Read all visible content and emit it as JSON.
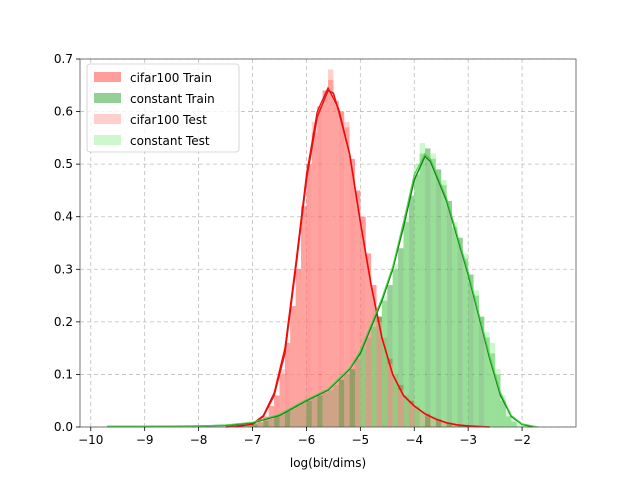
{
  "chart_data": {
    "type": "area",
    "title": "",
    "xlabel": "log(bit/dims)",
    "ylabel": "",
    "xlim": [
      -10.2,
      -1.0
    ],
    "ylim": [
      0,
      0.7
    ],
    "xticks": [
      -10,
      -9,
      -8,
      -7,
      -6,
      -5,
      -4,
      -3,
      -2
    ],
    "xtick_labels": [
      "−10",
      "−9",
      "−8",
      "−7",
      "−6",
      "−5",
      "−4",
      "−3",
      "−2"
    ],
    "yticks": [
      0.0,
      0.1,
      0.2,
      0.3,
      0.4,
      0.5,
      0.6,
      0.7
    ],
    "ytick_labels": [
      "0.0",
      "0.1",
      "0.2",
      "0.3",
      "0.4",
      "0.5",
      "0.6",
      "0.7"
    ],
    "grid": true,
    "legend_position": "top-left",
    "bin_width": 0.1,
    "series": [
      {
        "name": "cifar100 Train",
        "kind": "histogram",
        "color": "#ff4d4d",
        "opacity": 0.55,
        "bins": [
          {
            "x": -7.0,
            "y": 0.005
          },
          {
            "x": -6.9,
            "y": 0.01
          },
          {
            "x": -6.8,
            "y": 0.02
          },
          {
            "x": -6.7,
            "y": 0.04
          },
          {
            "x": -6.6,
            "y": 0.06
          },
          {
            "x": -6.5,
            "y": 0.1
          },
          {
            "x": -6.4,
            "y": 0.16
          },
          {
            "x": -6.3,
            "y": 0.23
          },
          {
            "x": -6.2,
            "y": 0.3
          },
          {
            "x": -6.1,
            "y": 0.42
          },
          {
            "x": -6.0,
            "y": 0.5
          },
          {
            "x": -5.9,
            "y": 0.56
          },
          {
            "x": -5.8,
            "y": 0.61
          },
          {
            "x": -5.7,
            "y": 0.64
          },
          {
            "x": -5.6,
            "y": 0.66
          },
          {
            "x": -5.5,
            "y": 0.62
          },
          {
            "x": -5.4,
            "y": 0.6
          },
          {
            "x": -5.3,
            "y": 0.57
          },
          {
            "x": -5.2,
            "y": 0.51
          },
          {
            "x": -5.1,
            "y": 0.45
          },
          {
            "x": -5.0,
            "y": 0.4
          },
          {
            "x": -4.9,
            "y": 0.33
          },
          {
            "x": -4.8,
            "y": 0.27
          },
          {
            "x": -4.7,
            "y": 0.21
          },
          {
            "x": -4.6,
            "y": 0.17
          },
          {
            "x": -4.5,
            "y": 0.13
          },
          {
            "x": -4.4,
            "y": 0.1
          },
          {
            "x": -4.3,
            "y": 0.08
          },
          {
            "x": -4.2,
            "y": 0.06
          },
          {
            "x": -4.1,
            "y": 0.05
          },
          {
            "x": -4.0,
            "y": 0.04
          },
          {
            "x": -3.9,
            "y": 0.03
          },
          {
            "x": -3.8,
            "y": 0.025
          },
          {
            "x": -3.7,
            "y": 0.02
          },
          {
            "x": -3.6,
            "y": 0.015
          },
          {
            "x": -3.5,
            "y": 0.01
          },
          {
            "x": -3.4,
            "y": 0.008
          },
          {
            "x": -3.3,
            "y": 0.006
          },
          {
            "x": -3.2,
            "y": 0.004
          },
          {
            "x": -3.1,
            "y": 0.003
          },
          {
            "x": -3.0,
            "y": 0.002
          }
        ]
      },
      {
        "name": "constant Train",
        "kind": "histogram",
        "color": "#2ca02c",
        "opacity": 0.5,
        "bins": [
          {
            "x": -7.3,
            "y": 0.003
          },
          {
            "x": -7.2,
            "y": 0.004
          },
          {
            "x": -7.1,
            "y": 0.006
          },
          {
            "x": -7.0,
            "y": 0.008
          },
          {
            "x": -6.9,
            "y": 0.01
          },
          {
            "x": -6.8,
            "y": 0.012
          },
          {
            "x": -6.7,
            "y": 0.015
          },
          {
            "x": -6.6,
            "y": 0.02
          },
          {
            "x": -6.5,
            "y": 0.025
          },
          {
            "x": -6.4,
            "y": 0.03
          },
          {
            "x": -6.3,
            "y": 0.035
          },
          {
            "x": -6.2,
            "y": 0.04
          },
          {
            "x": -6.1,
            "y": 0.045
          },
          {
            "x": -6.0,
            "y": 0.05
          },
          {
            "x": -5.9,
            "y": 0.055
          },
          {
            "x": -5.8,
            "y": 0.06
          },
          {
            "x": -5.7,
            "y": 0.065
          },
          {
            "x": -5.6,
            "y": 0.07
          },
          {
            "x": -5.5,
            "y": 0.08
          },
          {
            "x": -5.4,
            "y": 0.09
          },
          {
            "x": -5.3,
            "y": 0.1
          },
          {
            "x": -5.2,
            "y": 0.11
          },
          {
            "x": -5.1,
            "y": 0.13
          },
          {
            "x": -5.0,
            "y": 0.15
          },
          {
            "x": -4.9,
            "y": 0.17
          },
          {
            "x": -4.8,
            "y": 0.19
          },
          {
            "x": -4.7,
            "y": 0.21
          },
          {
            "x": -4.6,
            "y": 0.24
          },
          {
            "x": -4.5,
            "y": 0.27
          },
          {
            "x": -4.4,
            "y": 0.3
          },
          {
            "x": -4.3,
            "y": 0.34
          },
          {
            "x": -4.2,
            "y": 0.39
          },
          {
            "x": -4.1,
            "y": 0.44
          },
          {
            "x": -4.0,
            "y": 0.48
          },
          {
            "x": -3.9,
            "y": 0.52
          },
          {
            "x": -3.8,
            "y": 0.53
          },
          {
            "x": -3.7,
            "y": 0.51
          },
          {
            "x": -3.6,
            "y": 0.49
          },
          {
            "x": -3.5,
            "y": 0.46
          },
          {
            "x": -3.4,
            "y": 0.43
          },
          {
            "x": -3.3,
            "y": 0.38
          },
          {
            "x": -3.2,
            "y": 0.36
          },
          {
            "x": -3.1,
            "y": 0.32
          },
          {
            "x": -3.0,
            "y": 0.29
          },
          {
            "x": -2.9,
            "y": 0.25
          },
          {
            "x": -2.8,
            "y": 0.21
          },
          {
            "x": -2.7,
            "y": 0.17
          },
          {
            "x": -2.6,
            "y": 0.14
          },
          {
            "x": -2.5,
            "y": 0.1
          },
          {
            "x": -2.4,
            "y": 0.05
          },
          {
            "x": -2.3,
            "y": 0.02
          },
          {
            "x": -2.2,
            "y": 0.01
          }
        ]
      },
      {
        "name": "cifar100 Test",
        "kind": "histogram",
        "color": "#ffa8a0",
        "opacity": 0.55,
        "bins": [
          {
            "x": -6.9,
            "y": 0.01
          },
          {
            "x": -6.7,
            "y": 0.04
          },
          {
            "x": -6.5,
            "y": 0.11
          },
          {
            "x": -6.3,
            "y": 0.22
          },
          {
            "x": -6.2,
            "y": 0.28
          },
          {
            "x": -6.1,
            "y": 0.4
          },
          {
            "x": -5.9,
            "y": 0.58
          },
          {
            "x": -5.7,
            "y": 0.63
          },
          {
            "x": -5.6,
            "y": 0.68
          },
          {
            "x": -5.5,
            "y": 0.6
          },
          {
            "x": -5.3,
            "y": 0.58
          },
          {
            "x": -5.1,
            "y": 0.43
          },
          {
            "x": -4.9,
            "y": 0.32
          },
          {
            "x": -4.7,
            "y": 0.2
          },
          {
            "x": -4.5,
            "y": 0.12
          },
          {
            "x": -4.3,
            "y": 0.07
          },
          {
            "x": -4.1,
            "y": 0.045
          },
          {
            "x": -3.9,
            "y": 0.028
          },
          {
            "x": -3.7,
            "y": 0.018
          },
          {
            "x": -3.5,
            "y": 0.01
          },
          {
            "x": -3.3,
            "y": 0.005
          }
        ]
      },
      {
        "name": "constant Test",
        "kind": "histogram",
        "color": "#9bef9b",
        "opacity": 0.5,
        "bins": [
          {
            "x": -5.0,
            "y": 0.15
          },
          {
            "x": -4.8,
            "y": 0.2
          },
          {
            "x": -4.6,
            "y": 0.25
          },
          {
            "x": -4.4,
            "y": 0.31
          },
          {
            "x": -4.2,
            "y": 0.4
          },
          {
            "x": -4.0,
            "y": 0.5
          },
          {
            "x": -3.9,
            "y": 0.54
          },
          {
            "x": -3.7,
            "y": 0.52
          },
          {
            "x": -3.5,
            "y": 0.47
          },
          {
            "x": -3.3,
            "y": 0.39
          },
          {
            "x": -3.1,
            "y": 0.33
          },
          {
            "x": -2.9,
            "y": 0.26
          },
          {
            "x": -2.7,
            "y": 0.18
          },
          {
            "x": -2.6,
            "y": 0.16
          },
          {
            "x": -2.5,
            "y": 0.11
          },
          {
            "x": -2.4,
            "y": 0.06
          },
          {
            "x": -2.3,
            "y": 0.03
          },
          {
            "x": -2.2,
            "y": 0.015
          },
          {
            "x": -2.1,
            "y": 0.008
          },
          {
            "x": -2.0,
            "y": 0.004
          }
        ]
      }
    ],
    "kde": [
      {
        "series": "cifar100 Train",
        "color": "#d62020",
        "width": 1.6,
        "points": [
          [
            -7.5,
            0.0
          ],
          [
            -7.0,
            0.005
          ],
          [
            -6.8,
            0.02
          ],
          [
            -6.6,
            0.06
          ],
          [
            -6.4,
            0.14
          ],
          [
            -6.2,
            0.3
          ],
          [
            -6.0,
            0.47
          ],
          [
            -5.8,
            0.59
          ],
          [
            -5.6,
            0.64
          ],
          [
            -5.5,
            0.635
          ],
          [
            -5.4,
            0.6
          ],
          [
            -5.2,
            0.52
          ],
          [
            -5.0,
            0.39
          ],
          [
            -4.8,
            0.27
          ],
          [
            -4.6,
            0.17
          ],
          [
            -4.4,
            0.1
          ],
          [
            -4.2,
            0.06
          ],
          [
            -4.0,
            0.04
          ],
          [
            -3.8,
            0.025
          ],
          [
            -3.6,
            0.015
          ],
          [
            -3.4,
            0.008
          ],
          [
            -3.2,
            0.004
          ],
          [
            -3.0,
            0.002
          ],
          [
            -2.6,
            0.0
          ]
        ]
      },
      {
        "series": "cifar100 Test",
        "color": "#ff0000",
        "width": 1.2,
        "points": [
          [
            -7.3,
            0.0
          ],
          [
            -7.0,
            0.006
          ],
          [
            -6.8,
            0.022
          ],
          [
            -6.6,
            0.065
          ],
          [
            -6.4,
            0.15
          ],
          [
            -6.2,
            0.31
          ],
          [
            -6.0,
            0.48
          ],
          [
            -5.8,
            0.6
          ],
          [
            -5.6,
            0.645
          ],
          [
            -5.4,
            0.605
          ],
          [
            -5.2,
            0.52
          ],
          [
            -5.0,
            0.39
          ],
          [
            -4.8,
            0.27
          ],
          [
            -4.6,
            0.17
          ],
          [
            -4.4,
            0.1
          ],
          [
            -4.2,
            0.06
          ],
          [
            -4.0,
            0.04
          ],
          [
            -3.8,
            0.025
          ],
          [
            -3.6,
            0.015
          ],
          [
            -3.4,
            0.008
          ],
          [
            -3.2,
            0.004
          ],
          [
            -2.8,
            0.0
          ]
        ]
      },
      {
        "series": "constant Train",
        "color": "#1a7f1a",
        "width": 1.4,
        "points": [
          [
            -9.7,
            0.001
          ],
          [
            -9.0,
            0.001
          ],
          [
            -8.0,
            0.002
          ],
          [
            -7.5,
            0.003
          ],
          [
            -7.0,
            0.008
          ],
          [
            -6.5,
            0.022
          ],
          [
            -6.0,
            0.05
          ],
          [
            -5.6,
            0.07
          ],
          [
            -5.2,
            0.11
          ],
          [
            -5.0,
            0.14
          ],
          [
            -4.8,
            0.19
          ],
          [
            -4.6,
            0.24
          ],
          [
            -4.4,
            0.3
          ],
          [
            -4.2,
            0.38
          ],
          [
            -4.0,
            0.47
          ],
          [
            -3.8,
            0.515
          ],
          [
            -3.7,
            0.505
          ],
          [
            -3.6,
            0.48
          ],
          [
            -3.4,
            0.43
          ],
          [
            -3.2,
            0.36
          ],
          [
            -3.0,
            0.29
          ],
          [
            -2.8,
            0.21
          ],
          [
            -2.6,
            0.13
          ],
          [
            -2.4,
            0.06
          ],
          [
            -2.2,
            0.02
          ],
          [
            -2.0,
            0.005
          ],
          [
            -1.8,
            0.0
          ]
        ]
      },
      {
        "series": "constant Test",
        "color": "#44d544",
        "width": 1.1,
        "points": [
          [
            -9.7,
            0.001
          ],
          [
            -9.0,
            0.001
          ],
          [
            -8.0,
            0.002
          ],
          [
            -7.5,
            0.004
          ],
          [
            -7.0,
            0.009
          ],
          [
            -6.5,
            0.024
          ],
          [
            -6.0,
            0.052
          ],
          [
            -5.6,
            0.072
          ],
          [
            -5.2,
            0.112
          ],
          [
            -5.0,
            0.145
          ],
          [
            -4.8,
            0.195
          ],
          [
            -4.6,
            0.245
          ],
          [
            -4.4,
            0.305
          ],
          [
            -4.2,
            0.39
          ],
          [
            -4.0,
            0.48
          ],
          [
            -3.8,
            0.52
          ],
          [
            -3.7,
            0.51
          ],
          [
            -3.6,
            0.485
          ],
          [
            -3.4,
            0.435
          ],
          [
            -3.2,
            0.365
          ],
          [
            -3.0,
            0.295
          ],
          [
            -2.8,
            0.215
          ],
          [
            -2.6,
            0.135
          ],
          [
            -2.4,
            0.065
          ],
          [
            -2.2,
            0.022
          ],
          [
            -2.0,
            0.006
          ],
          [
            -1.7,
            0.0
          ]
        ]
      }
    ]
  }
}
